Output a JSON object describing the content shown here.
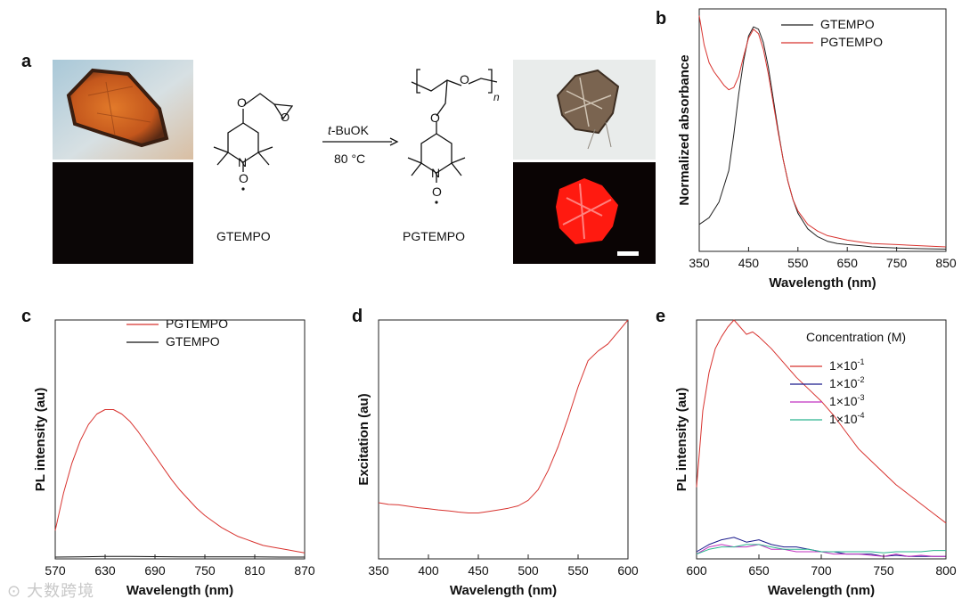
{
  "panels": {
    "a": {
      "letter": "a",
      "reagent": "t-BuOK",
      "reagent_italic": "t",
      "reagent_rest": "-BuOK",
      "condition": "80 °C",
      "monomer_label": "GTEMPO",
      "polymer_label": "PGTEMPO",
      "polymer_subscript": "n"
    },
    "b": {
      "letter": "b"
    },
    "c": {
      "letter": "c"
    },
    "d": {
      "letter": "d"
    },
    "e": {
      "letter": "e"
    }
  },
  "chart_data": [
    {
      "id": "b",
      "type": "line",
      "xlabel": "Wavelength (nm)",
      "ylabel": "Normalized absorbance",
      "xlim": [
        350,
        850
      ],
      "ylim": [
        0,
        1.08
      ],
      "xticks": [
        350,
        450,
        550,
        650,
        750,
        850
      ],
      "yticks_shown": false,
      "legend_position": "top-right",
      "series": [
        {
          "name": "GTEMPO",
          "color": "#222222",
          "x": [
            350,
            370,
            390,
            410,
            420,
            430,
            440,
            450,
            460,
            470,
            480,
            490,
            500,
            510,
            520,
            530,
            540,
            550,
            570,
            590,
            610,
            630,
            650,
            680,
            700,
            750,
            800,
            850
          ],
          "y": [
            0.12,
            0.15,
            0.22,
            0.36,
            0.52,
            0.7,
            0.85,
            0.96,
            1.0,
            0.99,
            0.93,
            0.82,
            0.68,
            0.54,
            0.41,
            0.31,
            0.23,
            0.17,
            0.1,
            0.065,
            0.045,
            0.035,
            0.03,
            0.025,
            0.02,
            0.015,
            0.012,
            0.01
          ]
        },
        {
          "name": "PGTEMPO",
          "color": "#d8332f",
          "x": [
            350,
            360,
            370,
            380,
            390,
            400,
            410,
            420,
            430,
            440,
            450,
            460,
            470,
            480,
            490,
            500,
            510,
            520,
            530,
            540,
            550,
            570,
            590,
            610,
            630,
            650,
            680,
            700,
            750,
            800,
            850
          ],
          "y": [
            1.05,
            0.92,
            0.84,
            0.8,
            0.77,
            0.74,
            0.72,
            0.73,
            0.78,
            0.87,
            0.95,
            0.99,
            0.97,
            0.9,
            0.79,
            0.66,
            0.53,
            0.41,
            0.31,
            0.23,
            0.18,
            0.12,
            0.09,
            0.07,
            0.06,
            0.05,
            0.04,
            0.035,
            0.03,
            0.025,
            0.02
          ]
        }
      ]
    },
    {
      "id": "c",
      "type": "line",
      "xlabel": "Wavelength (nm)",
      "ylabel": "PL intensity (au)",
      "xlim": [
        570,
        870
      ],
      "ylim": [
        0,
        1.6
      ],
      "xticks": [
        570,
        630,
        690,
        750,
        810,
        870
      ],
      "yticks_shown": false,
      "legend_position": "top-right",
      "series": [
        {
          "name": "PGTEMPO",
          "color": "#d8332f",
          "x": [
            570,
            580,
            590,
            600,
            610,
            620,
            630,
            640,
            650,
            660,
            670,
            680,
            690,
            700,
            710,
            720,
            730,
            740,
            750,
            760,
            770,
            780,
            790,
            800,
            810,
            820,
            830,
            840,
            850,
            860,
            870
          ],
          "y": [
            0.19,
            0.44,
            0.64,
            0.79,
            0.9,
            0.97,
            1.0,
            1.0,
            0.97,
            0.92,
            0.85,
            0.77,
            0.69,
            0.61,
            0.53,
            0.46,
            0.4,
            0.34,
            0.29,
            0.25,
            0.21,
            0.18,
            0.15,
            0.13,
            0.11,
            0.09,
            0.08,
            0.07,
            0.06,
            0.05,
            0.04
          ]
        },
        {
          "name": "GTEMPO",
          "color": "#111111",
          "x": [
            570,
            600,
            630,
            660,
            690,
            720,
            750,
            780,
            810,
            840,
            870
          ],
          "y": [
            0.012,
            0.014,
            0.016,
            0.016,
            0.015,
            0.014,
            0.014,
            0.013,
            0.013,
            0.012,
            0.012
          ]
        }
      ]
    },
    {
      "id": "d",
      "type": "line",
      "xlabel": "Wavelength (nm)",
      "ylabel": "Excitation (au)",
      "xlim": [
        350,
        600
      ],
      "ylim": [
        0,
        1.0
      ],
      "xticks": [
        350,
        400,
        450,
        500,
        550,
        600
      ],
      "yticks_shown": false,
      "series": [
        {
          "name": "excitation",
          "color": "#d8332f",
          "x": [
            350,
            360,
            370,
            380,
            390,
            400,
            410,
            420,
            430,
            440,
            450,
            460,
            470,
            480,
            490,
            500,
            510,
            520,
            530,
            540,
            550,
            560,
            570,
            580,
            590,
            600
          ],
          "y": [
            0.235,
            0.228,
            0.226,
            0.22,
            0.214,
            0.21,
            0.205,
            0.201,
            0.196,
            0.192,
            0.192,
            0.198,
            0.205,
            0.212,
            0.222,
            0.245,
            0.29,
            0.37,
            0.47,
            0.59,
            0.72,
            0.83,
            0.87,
            0.9,
            0.95,
            1.0
          ]
        }
      ]
    },
    {
      "id": "e",
      "type": "line",
      "xlabel": "Wavelength (nm)",
      "ylabel": "PL intensity (au)",
      "xlim": [
        600,
        800
      ],
      "ylim": [
        0,
        1.0
      ],
      "xticks": [
        600,
        650,
        700,
        750,
        800
      ],
      "yticks_shown": false,
      "legend_title": "Concentration (M)",
      "legend_position": "top-right",
      "series": [
        {
          "name": "1×10⁻¹",
          "name_base": "1×10",
          "name_exp": "-1",
          "color": "#d8332f",
          "x": [
            600,
            605,
            610,
            615,
            620,
            625,
            630,
            635,
            640,
            645,
            650,
            660,
            670,
            680,
            690,
            700,
            710,
            720,
            730,
            740,
            750,
            760,
            770,
            780,
            790,
            800
          ],
          "y": [
            0.3,
            0.62,
            0.78,
            0.88,
            0.93,
            0.97,
            1.0,
            0.97,
            0.94,
            0.95,
            0.93,
            0.88,
            0.82,
            0.76,
            0.71,
            0.66,
            0.6,
            0.53,
            0.46,
            0.41,
            0.36,
            0.31,
            0.27,
            0.23,
            0.19,
            0.15
          ]
        },
        {
          "name": "1×10⁻²",
          "name_base": "1×10",
          "name_exp": "-2",
          "color": "#1a1a8c",
          "x": [
            600,
            610,
            620,
            630,
            640,
            650,
            660,
            670,
            680,
            690,
            700,
            710,
            720,
            730,
            740,
            750,
            760,
            770,
            780,
            790,
            800
          ],
          "y": [
            0.03,
            0.06,
            0.08,
            0.09,
            0.07,
            0.08,
            0.06,
            0.05,
            0.05,
            0.04,
            0.03,
            0.03,
            0.02,
            0.02,
            0.02,
            0.01,
            0.015,
            0.01,
            0.01,
            0.01,
            0.01
          ]
        },
        {
          "name": "1×10⁻³",
          "name_base": "1×10",
          "name_exp": "-3",
          "color": "#c030c0",
          "x": [
            600,
            610,
            620,
            630,
            640,
            650,
            660,
            670,
            680,
            690,
            700,
            710,
            720,
            730,
            740,
            750,
            760,
            770,
            780,
            790,
            800
          ],
          "y": [
            0.02,
            0.05,
            0.06,
            0.05,
            0.05,
            0.06,
            0.04,
            0.04,
            0.03,
            0.03,
            0.03,
            0.02,
            0.02,
            0.02,
            0.015,
            0.01,
            0.02,
            0.01,
            0.015,
            0.01,
            0.01
          ]
        },
        {
          "name": "1×10⁻⁴",
          "name_base": "1×10",
          "name_exp": "-4",
          "color": "#2bb58f",
          "x": [
            600,
            610,
            620,
            630,
            640,
            650,
            660,
            670,
            680,
            690,
            700,
            710,
            720,
            730,
            740,
            750,
            760,
            770,
            780,
            790,
            800
          ],
          "y": [
            0.02,
            0.04,
            0.05,
            0.05,
            0.06,
            0.06,
            0.05,
            0.04,
            0.04,
            0.04,
            0.03,
            0.03,
            0.03,
            0.03,
            0.03,
            0.025,
            0.03,
            0.03,
            0.03,
            0.035,
            0.035
          ]
        }
      ]
    }
  ]
}
